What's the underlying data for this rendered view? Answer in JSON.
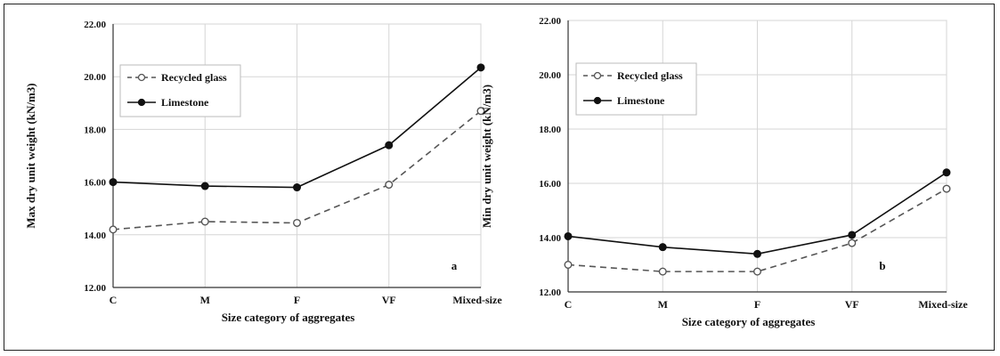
{
  "chart_data": [
    {
      "type": "line",
      "panel_label": "a",
      "categories": [
        "C",
        "M",
        "F",
        "VF",
        "Mixed-size"
      ],
      "xlabel": "Size category of aggregates",
      "ylabel": "Max dry unit weight (kN/m3)",
      "ylim": [
        12.0,
        22.0
      ],
      "yticks": [
        "12.00",
        "14.00",
        "16.00",
        "18.00",
        "20.00",
        "22.00"
      ],
      "grid": true,
      "legend_position": "top-left",
      "series": [
        {
          "name": "Recycled glass",
          "style": "dashed",
          "marker": "open-circle",
          "color": "#555555",
          "values": [
            14.2,
            14.5,
            14.45,
            15.9,
            18.7
          ]
        },
        {
          "name": "Limestone",
          "style": "solid",
          "marker": "filled-circle",
          "color": "#111111",
          "values": [
            16.0,
            15.85,
            15.8,
            17.4,
            20.35
          ]
        }
      ]
    },
    {
      "type": "line",
      "panel_label": "b",
      "categories": [
        "C",
        "M",
        "F",
        "VF",
        "Mixed-size"
      ],
      "xlabel": "Size category of aggregates",
      "ylabel": "Min dry unit weight (kN/m3)",
      "ylim": [
        12.0,
        22.0
      ],
      "yticks": [
        "12.00",
        "14.00",
        "16.00",
        "18.00",
        "20.00",
        "22.00"
      ],
      "grid": true,
      "legend_position": "top-left",
      "series": [
        {
          "name": "Recycled glass",
          "style": "dashed",
          "marker": "open-circle",
          "color": "#555555",
          "values": [
            13.0,
            12.75,
            12.75,
            13.8,
            15.8
          ]
        },
        {
          "name": "Limestone",
          "style": "solid",
          "marker": "filled-circle",
          "color": "#111111",
          "values": [
            14.05,
            13.65,
            13.4,
            14.1,
            16.4
          ]
        }
      ]
    }
  ]
}
